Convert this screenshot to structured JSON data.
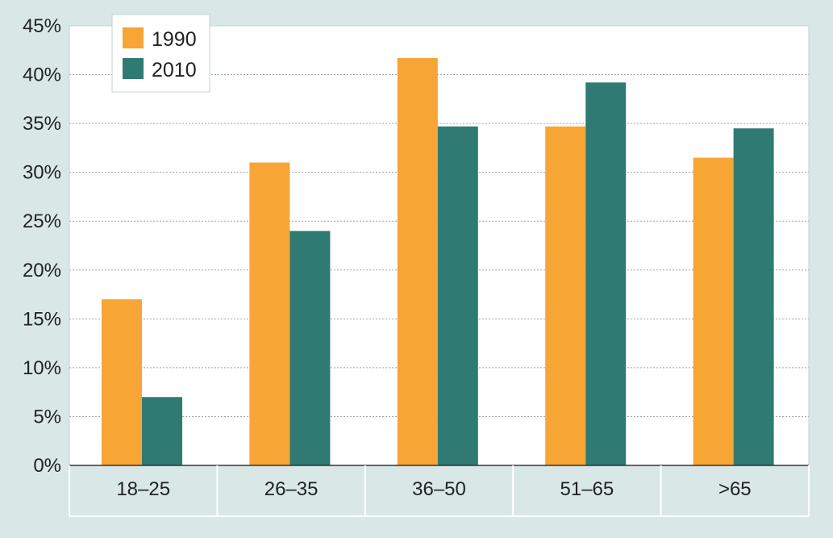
{
  "chart_data": {
    "type": "bar",
    "title": "",
    "xlabel": "",
    "ylabel": "",
    "categories": [
      "18–25",
      "26–35",
      "36–50",
      "51–65",
      ">65"
    ],
    "series": [
      {
        "name": "1990",
        "color": "#f7a535",
        "values": [
          17,
          31,
          41.7,
          34.7,
          31.5
        ]
      },
      {
        "name": "2010",
        "color": "#2f7b73",
        "values": [
          7,
          24,
          34.7,
          39.2,
          34.5
        ]
      }
    ],
    "ylim": [
      0,
      45
    ],
    "yticks": [
      0,
      5,
      10,
      15,
      20,
      25,
      30,
      35,
      40,
      45
    ],
    "ytick_labels": [
      "0%",
      "5%",
      "10%",
      "15%",
      "20%",
      "25%",
      "30%",
      "35%",
      "40%",
      "45%"
    ],
    "grid": true,
    "legend_position": "top-left",
    "colors": {
      "background": "#d9e8e7",
      "plot_background": "#ffffff",
      "grid": "#9aa8a8"
    }
  }
}
